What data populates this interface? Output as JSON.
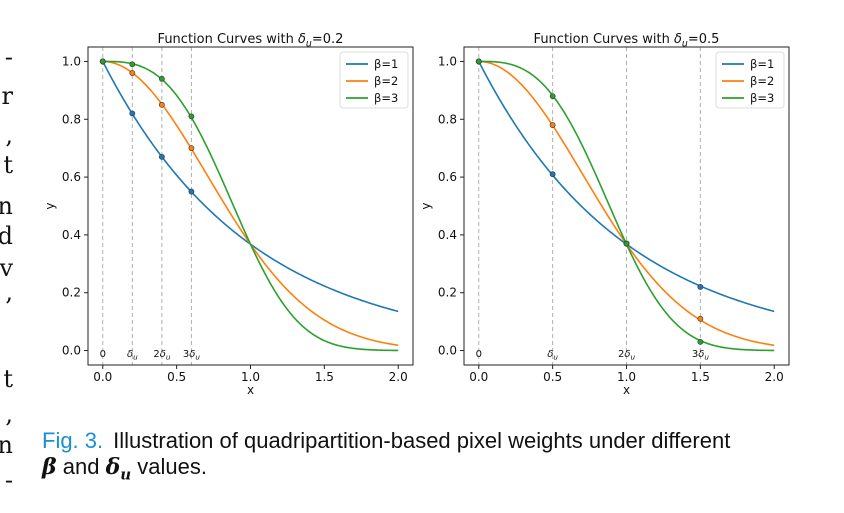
{
  "margin_text": [
    "-",
    "r",
    ",",
    "t",
    "n",
    "d",
    "v",
    ",",
    "",
    "t",
    ",",
    "n",
    "-"
  ],
  "caption": {
    "fig_label": "Fig. 3.",
    "text_1": "Illustration of quadripartition-based pixel weights under different",
    "sym_beta": "β",
    "text_2": "and",
    "sym_delta": "δ",
    "sym_delta_sub": "u",
    "text_3": "values."
  },
  "colors": {
    "beta1": "#1f77b4",
    "beta2": "#ff7f0e",
    "beta3": "#2ca02c"
  },
  "chart_data": [
    {
      "type": "line",
      "title": "Function Curves with δu=0.2",
      "xlabel": "x",
      "ylabel": "y",
      "xlim": [
        -0.1,
        2.1
      ],
      "ylim": [
        -0.05,
        1.05
      ],
      "xticks": [
        "0.0",
        "0.5",
        "1.0",
        "1.5",
        "2.0"
      ],
      "yticks": [
        "0.0",
        "0.2",
        "0.4",
        "0.6",
        "0.8",
        "1.0"
      ],
      "x": [
        0.0,
        0.2,
        0.4,
        0.6,
        0.8,
        1.0,
        1.2,
        1.4,
        1.6,
        1.8,
        2.0
      ],
      "series": [
        {
          "name": "β=1",
          "color": "#1f77b4",
          "values": [
            1.0,
            0.82,
            0.67,
            0.55,
            0.45,
            0.37,
            0.3,
            0.25,
            0.2,
            0.17,
            0.14
          ]
        },
        {
          "name": "β=2",
          "color": "#ff7f0e",
          "values": [
            1.0,
            0.96,
            0.85,
            0.7,
            0.53,
            0.37,
            0.24,
            0.14,
            0.08,
            0.04,
            0.02
          ]
        },
        {
          "name": "β=3",
          "color": "#2ca02c",
          "values": [
            1.0,
            0.99,
            0.94,
            0.81,
            0.6,
            0.37,
            0.18,
            0.06,
            0.02,
            0.0,
            0.0
          ]
        }
      ],
      "vlines": {
        "positions": [
          0.0,
          0.2,
          0.4,
          0.6
        ],
        "labels": [
          "0",
          "δu",
          "2δu",
          "3δu"
        ]
      },
      "markers": [
        {
          "series": "β=1",
          "x": [
            0.0,
            0.2,
            0.4,
            0.6
          ],
          "y": [
            1.0,
            0.82,
            0.67,
            0.55
          ]
        },
        {
          "series": "β=2",
          "x": [
            0.0,
            0.2,
            0.4,
            0.6
          ],
          "y": [
            1.0,
            0.96,
            0.85,
            0.7
          ]
        },
        {
          "series": "β=3",
          "x": [
            0.0,
            0.2,
            0.4,
            0.6
          ],
          "y": [
            1.0,
            0.99,
            0.94,
            0.81
          ]
        }
      ],
      "grid": false,
      "legend": "top-right"
    },
    {
      "type": "line",
      "title": "Function Curves with δu=0.5",
      "xlabel": "x",
      "ylabel": "y",
      "xlim": [
        -0.1,
        2.1
      ],
      "ylim": [
        -0.05,
        1.05
      ],
      "xticks": [
        "0.0",
        "0.5",
        "1.0",
        "1.5",
        "2.0"
      ],
      "yticks": [
        "0.0",
        "0.2",
        "0.4",
        "0.6",
        "0.8",
        "1.0"
      ],
      "x": [
        0.0,
        0.2,
        0.4,
        0.6,
        0.8,
        1.0,
        1.2,
        1.4,
        1.6,
        1.8,
        2.0
      ],
      "series": [
        {
          "name": "β=1",
          "color": "#1f77b4",
          "values": [
            1.0,
            0.82,
            0.67,
            0.55,
            0.45,
            0.37,
            0.3,
            0.25,
            0.2,
            0.17,
            0.14
          ]
        },
        {
          "name": "β=2",
          "color": "#ff7f0e",
          "values": [
            1.0,
            0.96,
            0.85,
            0.7,
            0.53,
            0.37,
            0.24,
            0.14,
            0.08,
            0.04,
            0.02
          ]
        },
        {
          "name": "β=3",
          "color": "#2ca02c",
          "values": [
            1.0,
            0.99,
            0.94,
            0.81,
            0.6,
            0.37,
            0.18,
            0.06,
            0.02,
            0.0,
            0.0
          ]
        }
      ],
      "vlines": {
        "positions": [
          0.0,
          0.5,
          1.0,
          1.5
        ],
        "labels": [
          "0",
          "δu",
          "2δu",
          "3δu"
        ]
      },
      "markers": [
        {
          "series": "β=1",
          "x": [
            0.0,
            0.5,
            1.0,
            1.5
          ],
          "y": [
            1.0,
            0.61,
            0.37,
            0.22
          ]
        },
        {
          "series": "β=2",
          "x": [
            0.0,
            0.5,
            1.0,
            1.5
          ],
          "y": [
            1.0,
            0.78,
            0.37,
            0.11
          ]
        },
        {
          "series": "β=3",
          "x": [
            0.0,
            0.5,
            1.0,
            1.5
          ],
          "y": [
            1.0,
            0.88,
            0.37,
            0.03
          ]
        }
      ],
      "grid": false,
      "legend": "top-right"
    }
  ]
}
